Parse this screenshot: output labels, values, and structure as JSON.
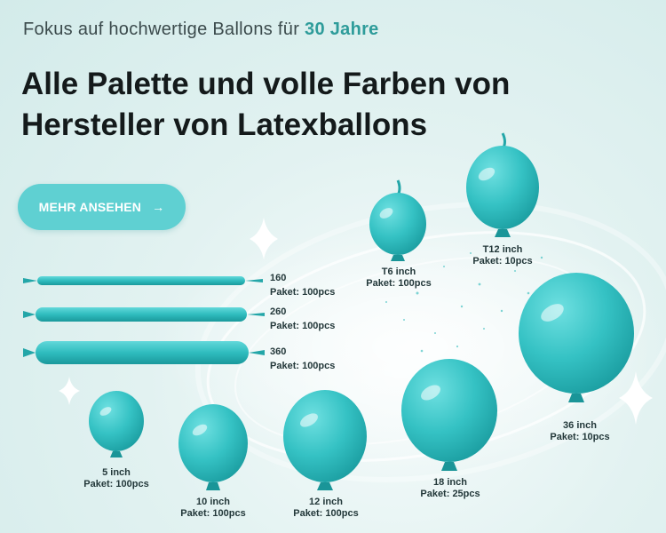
{
  "tagline": {
    "prefix": "Fokus auf hochwertige Ballons für",
    "highlight": "30 Jahre"
  },
  "headline": {
    "line1": "Alle Palette und volle Farben von",
    "line2": "Hersteller von Latexballons"
  },
  "cta": {
    "label": "MEHR ANSEHEN",
    "icon": "arrow-right-icon"
  },
  "colors": {
    "accent": "#2e9c9a",
    "button": "#5fd0d2",
    "balloon": "#3cc4c6",
    "balloon_dark": "#1e9a9c"
  },
  "modeling_balloons": [
    {
      "size": "160",
      "package": "Paket: 100pcs"
    },
    {
      "size": "260",
      "package": "Paket: 100pcs"
    },
    {
      "size": "360",
      "package": "Paket: 100pcs"
    }
  ],
  "round_balloons": [
    {
      "size": "5 inch",
      "package": "Paket: 100pcs"
    },
    {
      "size": "10 inch",
      "package": "Paket: 100pcs"
    },
    {
      "size": "12 inch",
      "package": "Paket: 100pcs"
    },
    {
      "size": "18 inch",
      "package": "Paket: 25pcs"
    },
    {
      "size": "36 inch",
      "package": "Paket: 10pcs"
    }
  ],
  "link_balloons": [
    {
      "size": "T6 inch",
      "package": "Paket: 100pcs"
    },
    {
      "size": "T12 inch",
      "package": "Paket: 10pcs"
    }
  ]
}
